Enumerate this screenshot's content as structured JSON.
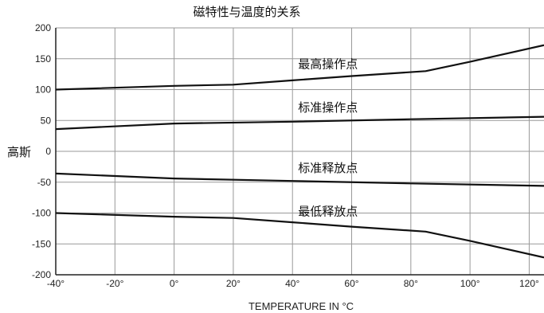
{
  "chart_data": {
    "type": "line",
    "title": "磁特性与温度的关系",
    "xlabel": "TEMPERATURE IN °C",
    "ylabel": "高斯",
    "xlim": [
      -40,
      125
    ],
    "ylim": [
      -200,
      200
    ],
    "x_ticks": [
      -40,
      -20,
      0,
      20,
      40,
      60,
      80,
      100,
      120
    ],
    "x_tick_labels": [
      "-40°",
      "-20°",
      "0°",
      "20°",
      "40°",
      "60°",
      "80°",
      "100°",
      "120°"
    ],
    "y_ticks": [
      200,
      150,
      100,
      50,
      0,
      -50,
      -100,
      -150,
      -200
    ],
    "y_tick_labels": [
      "200",
      "150",
      "100",
      "50",
      "0",
      "-50",
      "-100",
      "-150",
      "-200"
    ],
    "grid": true,
    "series": [
      {
        "name": "最高操作点",
        "x": [
          -40,
          0,
          20,
          40,
          60,
          85,
          100,
          125
        ],
        "values": [
          100,
          106,
          108,
          115,
          122,
          130,
          145,
          172
        ]
      },
      {
        "name": "标准操作点",
        "x": [
          -40,
          0,
          40,
          80,
          125
        ],
        "values": [
          36,
          45,
          48,
          52,
          56
        ]
      },
      {
        "name": "标准释放点",
        "x": [
          -40,
          0,
          40,
          80,
          125
        ],
        "values": [
          -36,
          -44,
          -48,
          -52,
          -56
        ]
      },
      {
        "name": "最低释放点",
        "x": [
          -40,
          0,
          20,
          40,
          60,
          85,
          100,
          125
        ],
        "values": [
          -100,
          -106,
          -108,
          -115,
          -122,
          -130,
          -145,
          -172
        ]
      }
    ]
  }
}
